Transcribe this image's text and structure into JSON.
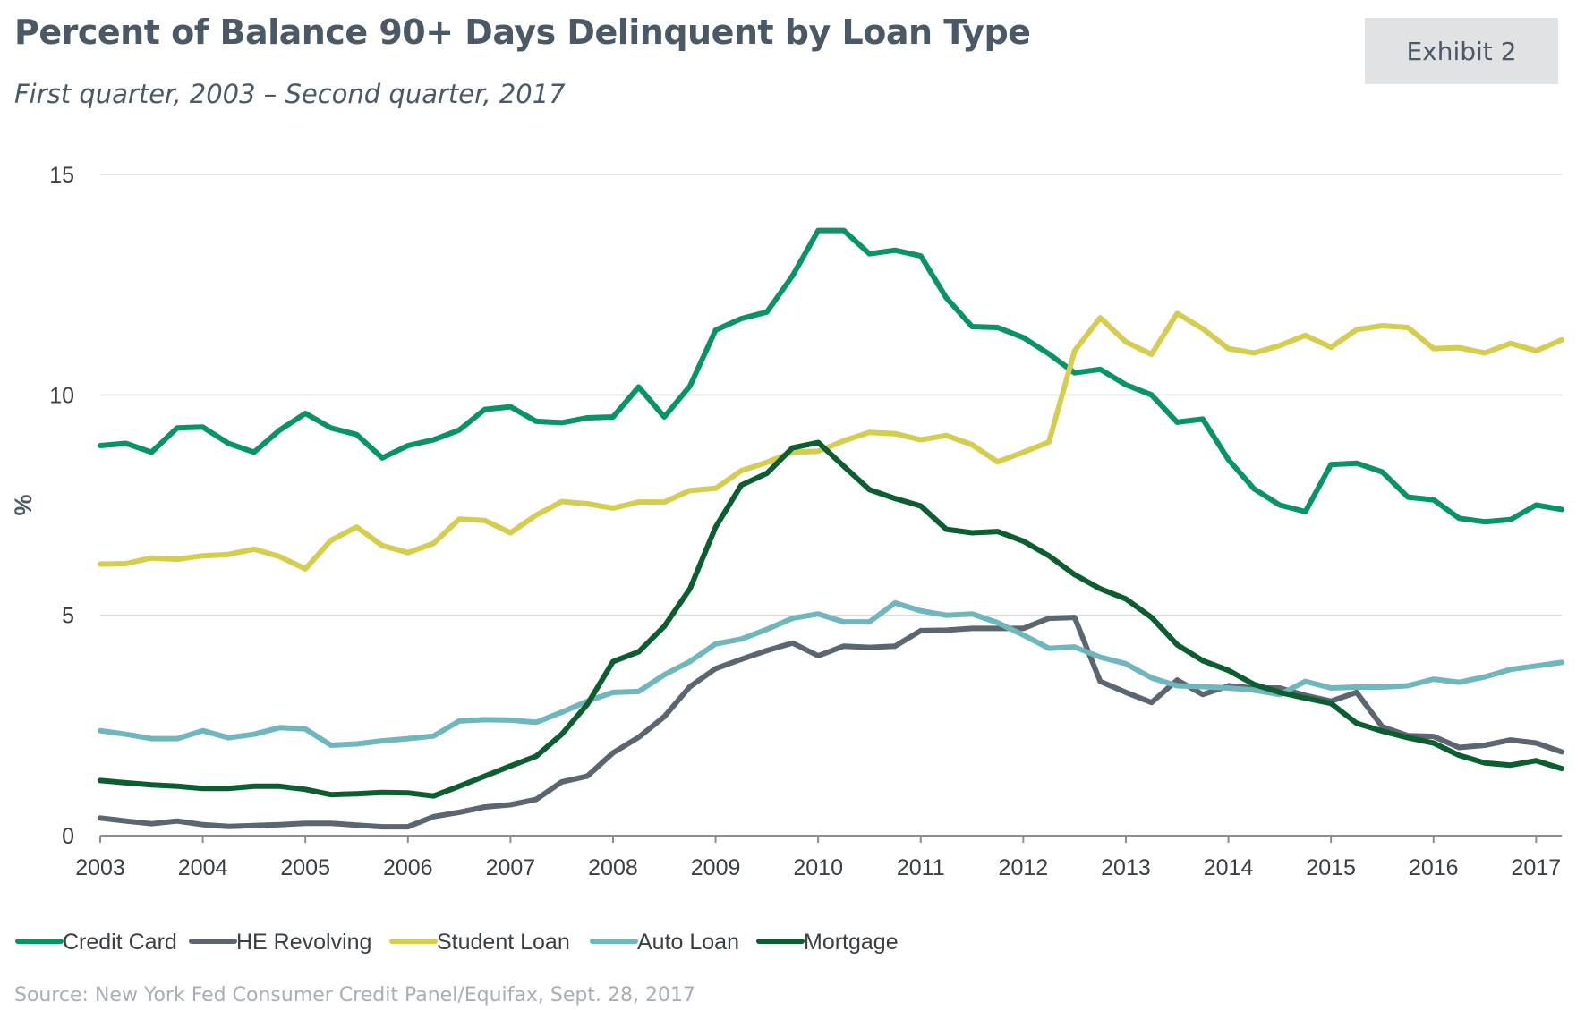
{
  "header": {
    "title": "Percent of Balance 90+ Days Delinquent by Loan Type",
    "subtitle": "First quarter, 2003 – Second quarter, 2017",
    "exhibit_label": "Exhibit 2"
  },
  "footer": {
    "source": "Source: New York Fed Consumer Credit Panel/Equifax, Sept. 28, 2017"
  },
  "chart_data": {
    "type": "line",
    "title": "Percent of Balance 90+ Days Delinquent by Loan Type",
    "subtitle": "First quarter, 2003 – Second quarter, 2017",
    "xlabel": "",
    "ylabel": "%",
    "xlim": [
      2003.0,
      2017.25
    ],
    "ylim": [
      0,
      15
    ],
    "yticks": [
      0,
      5,
      10,
      15
    ],
    "xticks": [
      "2003",
      "2004",
      "2005",
      "2006",
      "2007",
      "2008",
      "2009",
      "2010",
      "2011",
      "2012",
      "2013",
      "2014",
      "2015",
      "2016",
      "2017"
    ],
    "grid": true,
    "legend_position": "bottom-left",
    "x": [
      2003.0,
      2003.25,
      2003.5,
      2003.75,
      2004.0,
      2004.25,
      2004.5,
      2004.75,
      2005.0,
      2005.25,
      2005.5,
      2005.75,
      2006.0,
      2006.25,
      2006.5,
      2006.75,
      2007.0,
      2007.25,
      2007.5,
      2007.75,
      2008.0,
      2008.25,
      2008.5,
      2008.75,
      2009.0,
      2009.25,
      2009.5,
      2009.75,
      2010.0,
      2010.25,
      2010.5,
      2010.75,
      2011.0,
      2011.25,
      2011.5,
      2011.75,
      2012.0,
      2012.25,
      2012.5,
      2012.75,
      2013.0,
      2013.25,
      2013.5,
      2013.75,
      2014.0,
      2014.25,
      2014.5,
      2014.75,
      2015.0,
      2015.25,
      2015.5,
      2015.75,
      2016.0,
      2016.25,
      2016.5,
      2016.75,
      2017.0,
      2017.25
    ],
    "series": [
      {
        "name": "Credit Card",
        "color": "#0a9466",
        "values": [
          8.85,
          8.9,
          8.7,
          9.25,
          9.27,
          8.9,
          8.7,
          9.2,
          9.58,
          9.25,
          9.1,
          8.57,
          8.85,
          8.98,
          9.2,
          9.67,
          9.73,
          9.4,
          9.37,
          9.48,
          9.5,
          10.18,
          9.5,
          10.2,
          11.47,
          11.73,
          11.88,
          12.7,
          13.73,
          13.73,
          13.2,
          13.28,
          13.15,
          12.2,
          11.55,
          11.53,
          11.3,
          10.93,
          10.5,
          10.58,
          10.23,
          10.0,
          9.38,
          9.45,
          8.53,
          7.87,
          7.5,
          7.35,
          8.42,
          8.45,
          8.25,
          7.68,
          7.62,
          7.2,
          7.12,
          7.17,
          7.5,
          7.4
        ]
      },
      {
        "name": "HE Revolving",
        "color": "#5c6670",
        "values": [
          0.4,
          0.33,
          0.27,
          0.33,
          0.25,
          0.21,
          0.23,
          0.25,
          0.28,
          0.28,
          0.24,
          0.2,
          0.2,
          0.43,
          0.53,
          0.65,
          0.7,
          0.82,
          1.22,
          1.35,
          1.88,
          2.23,
          2.7,
          3.38,
          3.79,
          4.0,
          4.2,
          4.37,
          4.08,
          4.3,
          4.27,
          4.3,
          4.65,
          4.66,
          4.7,
          4.7,
          4.7,
          4.93,
          4.95,
          3.5,
          3.25,
          3.02,
          3.53,
          3.2,
          3.4,
          3.35,
          3.35,
          3.18,
          3.05,
          3.25,
          2.47,
          2.27,
          2.25,
          2.0,
          2.05,
          2.17,
          2.1,
          1.9
        ]
      },
      {
        "name": "Student Loan",
        "color": "#d4cd4f",
        "values": [
          6.16,
          6.17,
          6.3,
          6.27,
          6.35,
          6.38,
          6.5,
          6.33,
          6.05,
          6.7,
          7.0,
          6.58,
          6.42,
          6.63,
          7.18,
          7.15,
          6.87,
          7.27,
          7.58,
          7.53,
          7.43,
          7.57,
          7.57,
          7.83,
          7.88,
          8.28,
          8.47,
          8.7,
          8.72,
          8.96,
          9.15,
          9.12,
          8.98,
          9.08,
          8.87,
          8.48,
          8.7,
          8.93,
          11.0,
          11.75,
          11.2,
          10.92,
          11.85,
          11.5,
          11.05,
          10.95,
          11.12,
          11.35,
          11.08,
          11.48,
          11.57,
          11.53,
          11.05,
          11.07,
          10.95,
          11.17,
          11.0,
          11.25
        ]
      },
      {
        "name": "Auto Loan",
        "color": "#6fb7bc",
        "values": [
          2.38,
          2.3,
          2.2,
          2.2,
          2.38,
          2.22,
          2.3,
          2.45,
          2.42,
          2.05,
          2.08,
          2.15,
          2.2,
          2.26,
          2.6,
          2.63,
          2.62,
          2.57,
          2.8,
          3.05,
          3.25,
          3.27,
          3.65,
          3.95,
          4.35,
          4.46,
          4.68,
          4.93,
          5.03,
          4.85,
          4.85,
          5.28,
          5.1,
          5.0,
          5.03,
          4.83,
          4.55,
          4.25,
          4.28,
          4.05,
          3.9,
          3.58,
          3.4,
          3.38,
          3.35,
          3.3,
          3.2,
          3.5,
          3.35,
          3.37,
          3.37,
          3.4,
          3.55,
          3.48,
          3.6,
          3.77,
          3.85,
          3.93
        ]
      },
      {
        "name": "Mortgage",
        "color": "#0c5e30",
        "values": [
          1.25,
          1.2,
          1.15,
          1.12,
          1.07,
          1.07,
          1.12,
          1.12,
          1.05,
          0.93,
          0.95,
          0.98,
          0.97,
          0.9,
          1.12,
          1.35,
          1.58,
          1.8,
          2.3,
          2.98,
          3.95,
          4.17,
          4.75,
          5.6,
          7.0,
          7.95,
          8.22,
          8.8,
          8.92,
          8.38,
          7.85,
          7.65,
          7.48,
          6.95,
          6.87,
          6.9,
          6.68,
          6.35,
          5.92,
          5.6,
          5.37,
          4.95,
          4.33,
          3.97,
          3.75,
          3.43,
          3.25,
          3.12,
          3.0,
          2.55,
          2.37,
          2.22,
          2.1,
          1.82,
          1.65,
          1.6,
          1.7,
          1.52
        ]
      }
    ]
  }
}
